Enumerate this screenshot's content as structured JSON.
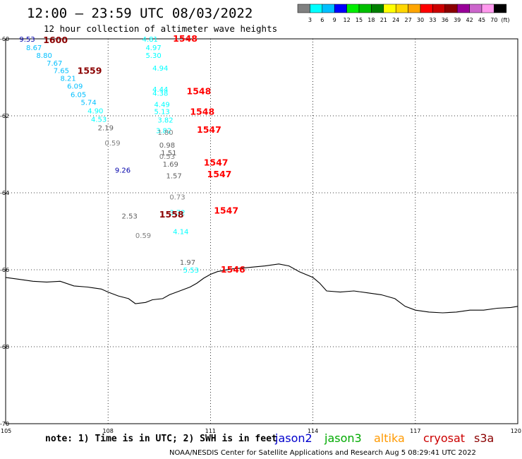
{
  "header": {
    "title": "12:00 – 23:59 UTC 08/03/2022",
    "subtitle": "12 hour collection of altimeter wave heights"
  },
  "legend": {
    "colors": [
      "#808080",
      "#00ffff",
      "#00bfff",
      "#0000ff",
      "#00ee00",
      "#00c000",
      "#008000",
      "#ffff00",
      "#ffd700",
      "#ffa500",
      "#ff0000",
      "#cc0000",
      "#8b0000",
      "#990099",
      "#cc66cc",
      "#ff99ee",
      "#000000"
    ],
    "labels": [
      "3",
      "6",
      "9",
      "12",
      "15",
      "18",
      "21",
      "24",
      "27",
      "30",
      "33",
      "36",
      "39",
      "42",
      "45",
      "70"
    ],
    "unit": "(ft)"
  },
  "axes": {
    "x_ticks": [
      105,
      108,
      111,
      114,
      117,
      120
    ],
    "y_ticks": [
      -60,
      -62,
      -64,
      -66,
      -68,
      -70
    ]
  },
  "chart_data": {
    "type": "scatter",
    "wave_points": [
      {
        "lon": 105.4,
        "lat": -60.0,
        "v": "9.53",
        "c": "#0000aa"
      },
      {
        "lon": 105.6,
        "lat": -60.22,
        "v": "8.67",
        "c": "#00bfff"
      },
      {
        "lon": 105.9,
        "lat": -60.42,
        "v": "8.80",
        "c": "#00bfff"
      },
      {
        "lon": 106.2,
        "lat": -60.62,
        "v": "7.67",
        "c": "#00bfff"
      },
      {
        "lon": 106.4,
        "lat": -60.82,
        "v": "7.65",
        "c": "#00bfff"
      },
      {
        "lon": 106.6,
        "lat": -61.02,
        "v": "8.21",
        "c": "#00bfff"
      },
      {
        "lon": 106.8,
        "lat": -61.22,
        "v": "6.09",
        "c": "#00bfff"
      },
      {
        "lon": 106.9,
        "lat": -61.44,
        "v": "6.05",
        "c": "#00bfff"
      },
      {
        "lon": 107.2,
        "lat": -61.64,
        "v": "5.74",
        "c": "#00bfff"
      },
      {
        "lon": 107.4,
        "lat": -61.86,
        "v": "4.90",
        "c": "#00ffff"
      },
      {
        "lon": 107.5,
        "lat": -62.08,
        "v": "4.53",
        "c": "#00ffff"
      },
      {
        "lon": 107.7,
        "lat": -62.3,
        "v": "2.19",
        "c": "#606060"
      },
      {
        "lon": 107.9,
        "lat": -62.7,
        "v": "0.59",
        "c": "#808080"
      },
      {
        "lon": 108.2,
        "lat": -63.4,
        "v": "9.26",
        "c": "#0000aa"
      },
      {
        "lon": 109.0,
        "lat": -60.0,
        "v": "4.81",
        "c": "#00ffff"
      },
      {
        "lon": 109.1,
        "lat": -60.22,
        "v": "4.97",
        "c": "#00ffff"
      },
      {
        "lon": 109.1,
        "lat": -60.42,
        "v": "5.30",
        "c": "#00ffff"
      },
      {
        "lon": 109.3,
        "lat": -60.75,
        "v": "4.94",
        "c": "#00ffff"
      },
      {
        "lon": 109.3,
        "lat": -61.3,
        "v": "4.44",
        "c": "#00ffff"
      },
      {
        "lon": 109.3,
        "lat": -61.4,
        "v": "4.38",
        "c": "#00ffff"
      },
      {
        "lon": 109.35,
        "lat": -61.7,
        "v": "4.49",
        "c": "#00ffff"
      },
      {
        "lon": 109.35,
        "lat": -61.88,
        "v": "5.13",
        "c": "#00ffff"
      },
      {
        "lon": 109.45,
        "lat": -62.1,
        "v": "3.82",
        "c": "#00ffff"
      },
      {
        "lon": 109.4,
        "lat": -62.38,
        "v": "3.82",
        "c": "#00ffff"
      },
      {
        "lon": 109.45,
        "lat": -62.42,
        "v": "1.80",
        "c": "#808080"
      },
      {
        "lon": 109.5,
        "lat": -62.75,
        "v": "0.98",
        "c": "#606060"
      },
      {
        "lon": 109.55,
        "lat": -62.95,
        "v": "1.51",
        "c": "#606060"
      },
      {
        "lon": 109.5,
        "lat": -63.05,
        "v": "0.53",
        "c": "#808080"
      },
      {
        "lon": 109.6,
        "lat": -63.25,
        "v": "1.69",
        "c": "#606060"
      },
      {
        "lon": 109.7,
        "lat": -63.55,
        "v": "1.57",
        "c": "#606060"
      },
      {
        "lon": 109.8,
        "lat": -64.1,
        "v": "0.73",
        "c": "#808080"
      },
      {
        "lon": 109.8,
        "lat": -64.5,
        "v": "3.72",
        "c": "#00ffff"
      },
      {
        "lon": 109.9,
        "lat": -65.0,
        "v": "4.14",
        "c": "#00ffff"
      },
      {
        "lon": 108.4,
        "lat": -64.6,
        "v": "2.53",
        "c": "#606060"
      },
      {
        "lon": 108.8,
        "lat": -65.1,
        "v": "0.59",
        "c": "#808080"
      },
      {
        "lon": 110.1,
        "lat": -65.8,
        "v": "1.97",
        "c": "#606060"
      },
      {
        "lon": 110.2,
        "lat": -66.0,
        "v": "5.53",
        "c": "#00ffff"
      }
    ],
    "time_labels": [
      {
        "lon": 106.1,
        "lat": -60.02,
        "t": "1600",
        "c": "#8b0000"
      },
      {
        "lon": 107.1,
        "lat": -60.82,
        "t": "1559",
        "c": "#8b0000"
      },
      {
        "lon": 109.9,
        "lat": -59.98,
        "t": "1548",
        "c": "#ff0000"
      },
      {
        "lon": 110.3,
        "lat": -61.35,
        "t": "1548",
        "c": "#ff0000"
      },
      {
        "lon": 110.4,
        "lat": -61.88,
        "t": "1548",
        "c": "#ff0000"
      },
      {
        "lon": 110.6,
        "lat": -62.35,
        "t": "1547",
        "c": "#ff0000"
      },
      {
        "lon": 110.8,
        "lat": -63.2,
        "t": "1547",
        "c": "#ff0000"
      },
      {
        "lon": 110.9,
        "lat": -63.5,
        "t": "1547",
        "c": "#ff0000"
      },
      {
        "lon": 111.1,
        "lat": -64.45,
        "t": "1547",
        "c": "#ff0000"
      },
      {
        "lon": 109.5,
        "lat": -64.55,
        "t": "1558",
        "c": "#8b0000"
      },
      {
        "lon": 111.3,
        "lat": -65.98,
        "t": "1546",
        "c": "#ff0000"
      }
    ],
    "coastline": [
      [
        105.0,
        -66.2
      ],
      [
        105.4,
        -66.25
      ],
      [
        105.8,
        -66.3
      ],
      [
        106.2,
        -66.32
      ],
      [
        106.6,
        -66.3
      ],
      [
        107.0,
        -66.42
      ],
      [
        107.4,
        -66.45
      ],
      [
        107.8,
        -66.5
      ],
      [
        108.0,
        -66.58
      ],
      [
        108.3,
        -66.68
      ],
      [
        108.6,
        -66.75
      ],
      [
        108.8,
        -66.88
      ],
      [
        109.1,
        -66.85
      ],
      [
        109.3,
        -66.78
      ],
      [
        109.6,
        -66.75
      ],
      [
        109.8,
        -66.65
      ],
      [
        110.1,
        -66.55
      ],
      [
        110.4,
        -66.45
      ],
      [
        110.6,
        -66.35
      ],
      [
        110.8,
        -66.22
      ],
      [
        111.0,
        -66.12
      ],
      [
        111.2,
        -66.05
      ],
      [
        111.6,
        -65.98
      ],
      [
        112.0,
        -65.95
      ],
      [
        112.6,
        -65.9
      ],
      [
        113.0,
        -65.85
      ],
      [
        113.3,
        -65.9
      ],
      [
        113.6,
        -66.05
      ],
      [
        114.0,
        -66.2
      ],
      [
        114.2,
        -66.35
      ],
      [
        114.4,
        -66.55
      ],
      [
        114.8,
        -66.58
      ],
      [
        115.2,
        -66.55
      ],
      [
        115.6,
        -66.6
      ],
      [
        116.0,
        -66.65
      ],
      [
        116.4,
        -66.75
      ],
      [
        116.7,
        -66.95
      ],
      [
        117.0,
        -67.05
      ],
      [
        117.4,
        -67.1
      ],
      [
        117.8,
        -67.12
      ],
      [
        118.2,
        -67.1
      ],
      [
        118.6,
        -67.05
      ],
      [
        119.0,
        -67.05
      ],
      [
        119.4,
        -67.0
      ],
      [
        119.8,
        -66.98
      ],
      [
        120.0,
        -66.95
      ]
    ]
  },
  "footer": {
    "note": "note: 1) Time is in UTC; 2) SWH is in feet",
    "satellites": [
      {
        "name": "jason2",
        "color": "#0000cc"
      },
      {
        "name": "jason3",
        "color": "#00aa00"
      },
      {
        "name": "altika",
        "color": "#ff9900"
      },
      {
        "name": "cryosat",
        "color": "#cc0000"
      },
      {
        "name": "s3a",
        "color": "#8b0000"
      }
    ],
    "credit": "NOAA/NESDIS Center for Satellite Applications and Research    Aug  5 08:29:41 UTC 2022"
  }
}
